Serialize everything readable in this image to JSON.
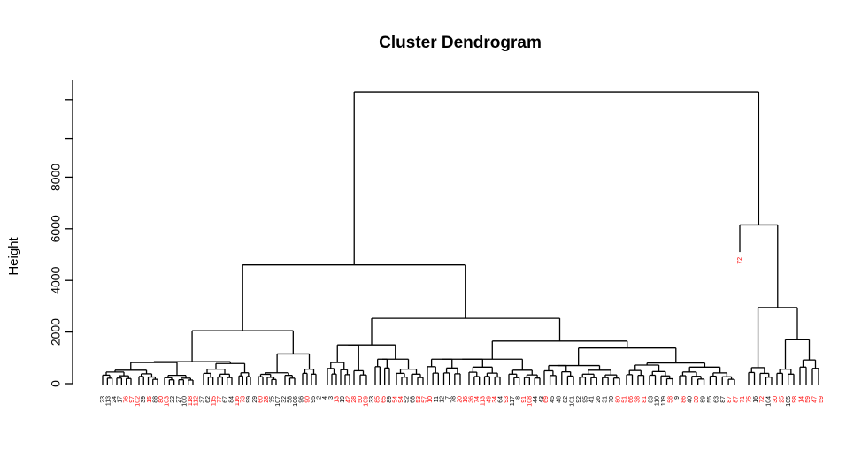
{
  "chart_data": {
    "type": "dendrogram",
    "title": "Cluster Dendrogram",
    "ylabel": "Height",
    "ylim": [
      0,
      11000
    ],
    "yticks": [
      0,
      2000,
      4000,
      6000,
      8000
    ],
    "label_colors": {
      "black": "#000000",
      "red": "#ff0000"
    },
    "labels_left": [
      "23",
      "113",
      "24",
      "17",
      "76",
      "97",
      "102",
      "39",
      "15",
      "88",
      "80",
      "103",
      "22",
      "27",
      "100",
      "118",
      "112",
      "37",
      "62",
      "115",
      "77",
      "67",
      "84",
      "116",
      "73",
      "99",
      "29",
      "60",
      "28",
      "35",
      "107",
      "32",
      "58",
      "106",
      "96",
      "90",
      "95",
      "2",
      "4",
      "3",
      "13",
      "19",
      "42",
      "28",
      "50",
      "109",
      "33",
      "85",
      "65",
      "89",
      "54",
      "94",
      "52",
      "68",
      "53",
      "57",
      "10",
      "11",
      "12",
      "7",
      "78",
      "20",
      "16",
      "36",
      "74",
      "113",
      "49",
      "34",
      "64",
      "93",
      "117",
      "8",
      "91",
      "108",
      "44",
      "43"
    ],
    "labels_right": [
      "69",
      "45",
      "48",
      "82",
      "101",
      "92",
      "95",
      "41",
      "26",
      "31",
      "70",
      "80",
      "51",
      "66",
      "38",
      "81",
      "83",
      "110",
      "119",
      "58",
      "9",
      "86",
      "40",
      "30",
      "89",
      "55",
      "63",
      "87",
      "87",
      "87",
      "71",
      "75",
      "16",
      "72",
      "104",
      "30",
      "25",
      "105",
      "98",
      "14",
      "59",
      "47",
      "59"
    ],
    "leaf_colors_left": "bbbbrrrbrbrrbbbrrbbrrbbrrbbrrbbbbbbrbbbbrbrrrrbrrbrrbbrrrbbbbrrrrrrrbrbbrrbb",
    "leaf_colors_right": "rbbbbbbbbbbrrrrrbbbrbrbrbbbbrrrrbrbrrbrrrrr"
  }
}
